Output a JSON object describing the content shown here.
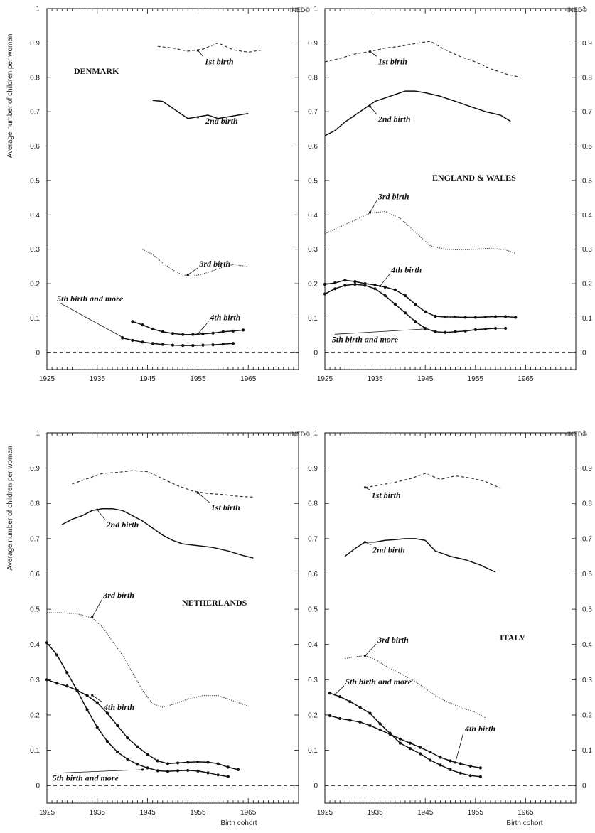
{
  "figure": {
    "ylabel": "Average number of children per woman",
    "xlabel": "Birth cohort",
    "watermark": "INED©"
  },
  "chart_data": [
    {
      "type": "line",
      "title": "DENMARK",
      "ylim": [
        0,
        1
      ],
      "xlim": [
        1925,
        1975
      ],
      "xticks": [
        1925,
        1935,
        1945,
        1955,
        1965
      ],
      "yticks": [
        0,
        0.1,
        0.2,
        0.3,
        0.4,
        0.5,
        0.6,
        0.7,
        0.8,
        0.9,
        1
      ],
      "series": [
        {
          "name": "1st birth",
          "style": "dashed",
          "x": [
            1947,
            1950,
            1953,
            1956,
            1959,
            1962,
            1965,
            1968
          ],
          "y": [
            0.89,
            0.885,
            0.876,
            0.882,
            0.9,
            0.88,
            0.873,
            0.88
          ]
        },
        {
          "name": "2nd birth",
          "style": "solid",
          "x": [
            1946,
            1948,
            1950,
            1953,
            1955,
            1957,
            1959,
            1961,
            1963,
            1965
          ],
          "y": [
            0.733,
            0.73,
            0.71,
            0.68,
            0.685,
            0.69,
            0.68,
            0.685,
            0.69,
            0.695
          ]
        },
        {
          "name": "3rd birth",
          "style": "dotted",
          "x": [
            1944,
            1946,
            1948,
            1950,
            1952,
            1954,
            1956,
            1958,
            1960,
            1962,
            1965
          ],
          "y": [
            0.3,
            0.285,
            0.26,
            0.24,
            0.225,
            0.222,
            0.228,
            0.238,
            0.248,
            0.255,
            0.25
          ]
        },
        {
          "name": "4th birth",
          "style": "dots",
          "x": [
            1942,
            1944,
            1946,
            1948,
            1950,
            1952,
            1954,
            1956,
            1958,
            1960,
            1962,
            1964
          ],
          "y": [
            0.09,
            0.08,
            0.068,
            0.06,
            0.055,
            0.052,
            0.052,
            0.054,
            0.056,
            0.06,
            0.062,
            0.065
          ]
        },
        {
          "name": "5th birth and more",
          "style": "dots",
          "x": [
            1940,
            1942,
            1944,
            1946,
            1948,
            1950,
            1952,
            1954,
            1956,
            1958,
            1960,
            1962
          ],
          "y": [
            0.042,
            0.035,
            0.03,
            0.026,
            0.023,
            0.021,
            0.02,
            0.02,
            0.021,
            0.022,
            0.024,
            0.026
          ]
        }
      ],
      "annotations": [
        {
          "text": "1st birth",
          "series": "1st birth"
        },
        {
          "text": "2nd birth",
          "series": "2nd birth"
        },
        {
          "text": "3rd birth",
          "series": "3rd birth"
        },
        {
          "text": "4th birth",
          "series": "4th birth"
        },
        {
          "text": "5th birth and more",
          "series": "5th birth and more"
        }
      ]
    },
    {
      "type": "line",
      "title": "ENGLAND & WALES",
      "ylim": [
        0,
        1
      ],
      "xlim": [
        1925,
        1975
      ],
      "xticks": [
        1925,
        1935,
        1945,
        1955,
        1965
      ],
      "yticks": [
        0,
        0.1,
        0.2,
        0.3,
        0.4,
        0.5,
        0.6,
        0.7,
        0.8,
        0.9,
        1
      ],
      "series": [
        {
          "name": "1st birth",
          "style": "dashed",
          "x": [
            1925,
            1928,
            1931,
            1934,
            1937,
            1940,
            1943,
            1946,
            1949,
            1952,
            1955,
            1958,
            1961,
            1964
          ],
          "y": [
            0.845,
            0.855,
            0.868,
            0.875,
            0.885,
            0.89,
            0.898,
            0.905,
            0.88,
            0.86,
            0.845,
            0.825,
            0.81,
            0.8
          ]
        },
        {
          "name": "2nd birth",
          "style": "solid",
          "x": [
            1925,
            1927,
            1929,
            1931,
            1933,
            1935,
            1937,
            1939,
            1941,
            1943,
            1945,
            1948,
            1951,
            1954,
            1957,
            1960,
            1962
          ],
          "y": [
            0.63,
            0.645,
            0.67,
            0.69,
            0.71,
            0.73,
            0.74,
            0.75,
            0.76,
            0.76,
            0.755,
            0.745,
            0.73,
            0.715,
            0.7,
            0.69,
            0.672
          ]
        },
        {
          "name": "3rd birth",
          "style": "dotted",
          "x": [
            1925,
            1928,
            1931,
            1934,
            1937,
            1940,
            1943,
            1946,
            1949,
            1952,
            1955,
            1958,
            1961,
            1963
          ],
          "y": [
            0.345,
            0.365,
            0.385,
            0.405,
            0.41,
            0.39,
            0.35,
            0.31,
            0.3,
            0.298,
            0.3,
            0.303,
            0.298,
            0.288
          ]
        },
        {
          "name": "4th birth",
          "style": "dots",
          "x": [
            1925,
            1927,
            1929,
            1931,
            1933,
            1935,
            1937,
            1939,
            1941,
            1943,
            1945,
            1947,
            1949,
            1951,
            1953,
            1955,
            1957,
            1959,
            1961,
            1963
          ],
          "y": [
            0.198,
            0.202,
            0.21,
            0.206,
            0.2,
            0.196,
            0.19,
            0.182,
            0.165,
            0.14,
            0.118,
            0.105,
            0.103,
            0.103,
            0.102,
            0.102,
            0.103,
            0.104,
            0.104,
            0.102
          ]
        },
        {
          "name": "5th birth and more",
          "style": "dots",
          "x": [
            1925,
            1927,
            1929,
            1931,
            1933,
            1935,
            1937,
            1939,
            1941,
            1943,
            1945,
            1947,
            1949,
            1951,
            1953,
            1955,
            1957,
            1959,
            1961
          ],
          "y": [
            0.17,
            0.185,
            0.195,
            0.198,
            0.195,
            0.185,
            0.165,
            0.14,
            0.115,
            0.09,
            0.07,
            0.06,
            0.058,
            0.06,
            0.062,
            0.066,
            0.068,
            0.07,
            0.07
          ]
        }
      ],
      "annotations": [
        {
          "text": "1st birth",
          "series": "1st birth"
        },
        {
          "text": "2nd birth",
          "series": "2nd birth"
        },
        {
          "text": "3rd birth",
          "series": "3rd birth"
        },
        {
          "text": "4th birth",
          "series": "4th birth"
        },
        {
          "text": "5th birth and more",
          "series": "5th birth and more"
        }
      ]
    },
    {
      "type": "line",
      "title": "NETHERLANDS",
      "ylim": [
        0,
        1
      ],
      "xlim": [
        1925,
        1975
      ],
      "xticks": [
        1925,
        1935,
        1945,
        1955,
        1965
      ],
      "yticks": [
        0,
        0.1,
        0.2,
        0.3,
        0.4,
        0.5,
        0.6,
        0.7,
        0.8,
        0.9,
        1
      ],
      "series": [
        {
          "name": "1st birth",
          "style": "dashed",
          "x": [
            1930,
            1933,
            1936,
            1939,
            1942,
            1945,
            1948,
            1951,
            1954,
            1957,
            1960,
            1963,
            1966
          ],
          "y": [
            0.855,
            0.87,
            0.885,
            0.888,
            0.893,
            0.89,
            0.87,
            0.85,
            0.835,
            0.828,
            0.825,
            0.82,
            0.818
          ]
        },
        {
          "name": "2nd birth",
          "style": "solid",
          "x": [
            1928,
            1930,
            1932,
            1934,
            1936,
            1938,
            1940,
            1942,
            1944,
            1946,
            1948,
            1950,
            1952,
            1955,
            1958,
            1961,
            1964,
            1966
          ],
          "y": [
            0.74,
            0.755,
            0.765,
            0.78,
            0.785,
            0.785,
            0.78,
            0.765,
            0.75,
            0.73,
            0.71,
            0.695,
            0.685,
            0.68,
            0.675,
            0.665,
            0.652,
            0.645
          ]
        },
        {
          "name": "3rd birth",
          "style": "dotted",
          "x": [
            1925,
            1928,
            1931,
            1934,
            1936,
            1938,
            1940,
            1942,
            1944,
            1946,
            1948,
            1950,
            1953,
            1956,
            1959,
            1962,
            1965
          ],
          "y": [
            0.49,
            0.49,
            0.487,
            0.475,
            0.45,
            0.41,
            0.37,
            0.32,
            0.27,
            0.232,
            0.222,
            0.23,
            0.245,
            0.255,
            0.255,
            0.24,
            0.225
          ]
        },
        {
          "name": "4th birth",
          "style": "dots",
          "x": [
            1925,
            1927,
            1929,
            1931,
            1933,
            1935,
            1937,
            1939,
            1941,
            1943,
            1945,
            1947,
            1949,
            1951,
            1953,
            1955,
            1957,
            1959,
            1961,
            1963
          ],
          "y": [
            0.3,
            0.29,
            0.282,
            0.27,
            0.255,
            0.235,
            0.205,
            0.17,
            0.135,
            0.11,
            0.088,
            0.07,
            0.062,
            0.064,
            0.066,
            0.067,
            0.066,
            0.062,
            0.052,
            0.045
          ]
        },
        {
          "name": "5th birth and more",
          "style": "dots",
          "x": [
            1925,
            1927,
            1929,
            1931,
            1933,
            1935,
            1937,
            1939,
            1941,
            1943,
            1945,
            1947,
            1949,
            1951,
            1953,
            1955,
            1957,
            1959,
            1961
          ],
          "y": [
            0.405,
            0.37,
            0.32,
            0.27,
            0.215,
            0.165,
            0.125,
            0.095,
            0.075,
            0.06,
            0.05,
            0.042,
            0.04,
            0.042,
            0.043,
            0.041,
            0.036,
            0.03,
            0.025
          ]
        }
      ],
      "annotations": [
        {
          "text": "1st birth",
          "series": "1st birth"
        },
        {
          "text": "2nd birth",
          "series": "2nd birth"
        },
        {
          "text": "3rd birth",
          "series": "3rd birth"
        },
        {
          "text": "4th birth",
          "series": "4th birth"
        },
        {
          "text": "5th birth and more",
          "series": "5th birth and more"
        }
      ]
    },
    {
      "type": "line",
      "title": "ITALY",
      "ylim": [
        0,
        1
      ],
      "xlim": [
        1925,
        1975
      ],
      "xticks": [
        1925,
        1935,
        1945,
        1955,
        1965
      ],
      "yticks": [
        0,
        0.1,
        0.2,
        0.3,
        0.4,
        0.5,
        0.6,
        0.7,
        0.8,
        0.9,
        1
      ],
      "series": [
        {
          "name": "1st birth",
          "style": "dashed",
          "x": [
            1933,
            1936,
            1939,
            1942,
            1945,
            1948,
            1951,
            1954,
            1957,
            1960
          ],
          "y": [
            0.845,
            0.852,
            0.86,
            0.87,
            0.885,
            0.868,
            0.878,
            0.872,
            0.862,
            0.843
          ]
        },
        {
          "name": "2nd birth",
          "style": "solid",
          "x": [
            1929,
            1931,
            1933,
            1935,
            1937,
            1939,
            1941,
            1943,
            1945,
            1947,
            1950,
            1953,
            1956,
            1959
          ],
          "y": [
            0.65,
            0.672,
            0.69,
            0.69,
            0.695,
            0.697,
            0.7,
            0.7,
            0.695,
            0.665,
            0.65,
            0.64,
            0.625,
            0.605
          ]
        },
        {
          "name": "3rd birth",
          "style": "dotted",
          "x": [
            1929,
            1931,
            1933,
            1935,
            1937,
            1939,
            1941,
            1943,
            1945,
            1947,
            1949,
            1951,
            1953,
            1955,
            1957
          ],
          "y": [
            0.36,
            0.365,
            0.368,
            0.358,
            0.34,
            0.325,
            0.31,
            0.295,
            0.275,
            0.255,
            0.24,
            0.228,
            0.217,
            0.208,
            0.192
          ]
        },
        {
          "name": "4th birth",
          "style": "dots",
          "x": [
            1926,
            1928,
            1930,
            1932,
            1934,
            1936,
            1938,
            1940,
            1942,
            1944,
            1946,
            1948,
            1950,
            1952,
            1954,
            1956
          ],
          "y": [
            0.198,
            0.19,
            0.185,
            0.18,
            0.17,
            0.158,
            0.145,
            0.132,
            0.12,
            0.108,
            0.095,
            0.08,
            0.07,
            0.062,
            0.055,
            0.05
          ]
        },
        {
          "name": "5th birth and more",
          "style": "dots",
          "x": [
            1926,
            1928,
            1930,
            1932,
            1934,
            1936,
            1938,
            1940,
            1942,
            1944,
            1946,
            1948,
            1950,
            1952,
            1954,
            1956
          ],
          "y": [
            0.262,
            0.252,
            0.238,
            0.222,
            0.205,
            0.175,
            0.148,
            0.12,
            0.105,
            0.09,
            0.072,
            0.058,
            0.045,
            0.035,
            0.028,
            0.025
          ]
        }
      ],
      "annotations": [
        {
          "text": "1st birth",
          "series": "1st birth"
        },
        {
          "text": "2nd birth",
          "series": "2nd birth"
        },
        {
          "text": "3rd birth",
          "series": "3rd birth"
        },
        {
          "text": "4th birth",
          "series": "4th birth"
        },
        {
          "text": "5th birth and more",
          "series": "5th birth and more"
        }
      ]
    }
  ]
}
